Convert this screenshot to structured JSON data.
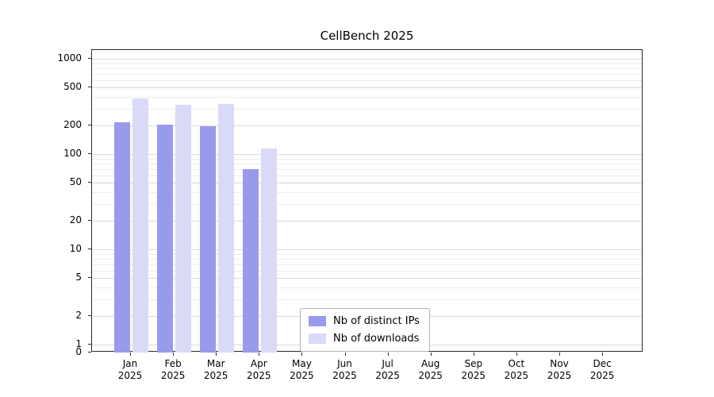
{
  "title": "CellBench 2025",
  "chart_data": {
    "type": "bar",
    "title": "CellBench 2025",
    "categories": [
      {
        "month": "Jan",
        "year": "2025"
      },
      {
        "month": "Feb",
        "year": "2025"
      },
      {
        "month": "Mar",
        "year": "2025"
      },
      {
        "month": "Apr",
        "year": "2025"
      },
      {
        "month": "May",
        "year": "2025"
      },
      {
        "month": "Jun",
        "year": "2025"
      },
      {
        "month": "Jul",
        "year": "2025"
      },
      {
        "month": "Aug",
        "year": "2025"
      },
      {
        "month": "Sep",
        "year": "2025"
      },
      {
        "month": "Oct",
        "year": "2025"
      },
      {
        "month": "Nov",
        "year": "2025"
      },
      {
        "month": "Dec",
        "year": "2025"
      }
    ],
    "series": [
      {
        "name": "Nb of distinct IPs",
        "color": "#9a9aed",
        "values": [
          215,
          205,
          195,
          70,
          null,
          null,
          null,
          null,
          null,
          null,
          null,
          null
        ]
      },
      {
        "name": "Nb of downloads",
        "color": "#d9d9f8",
        "values": [
          380,
          330,
          335,
          115,
          null,
          null,
          null,
          null,
          null,
          null,
          null,
          null
        ]
      }
    ],
    "yticks": [
      0,
      1,
      2,
      5,
      10,
      20,
      50,
      100,
      200,
      500,
      1000
    ],
    "yscale": "symlog",
    "ylim": [
      0,
      1200
    ],
    "grid": true,
    "legend_position": "lower center"
  }
}
